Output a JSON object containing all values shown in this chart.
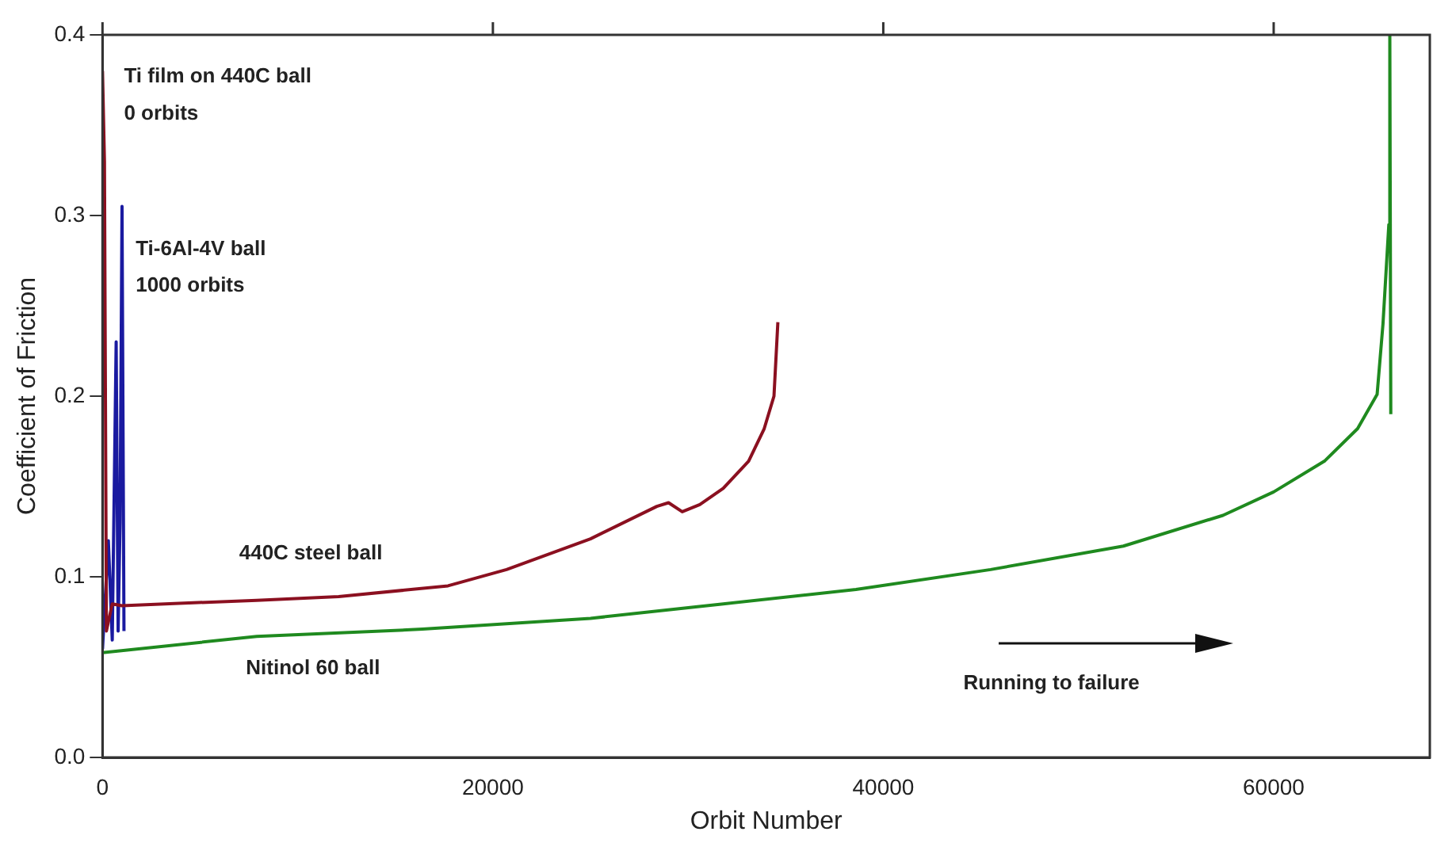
{
  "chart_data": {
    "type": "line",
    "xlabel": "Orbit Number",
    "ylabel": "Coefficient of Friction",
    "xlim": [
      0,
      68000
    ],
    "xticks": [
      0,
      20000,
      40000,
      60000
    ],
    "ylim": [
      0,
      0.4
    ],
    "yticks": [
      {
        "value": 0,
        "label": "0.0"
      },
      {
        "value": 0.1,
        "label": "0.1"
      },
      {
        "value": 0.2,
        "label": "0.2"
      },
      {
        "value": 0.3,
        "label": "0.3"
      },
      {
        "value": 0.4,
        "label": "0.4"
      }
    ],
    "grid": false,
    "legend": false,
    "marker": "none",
    "line_style": "solid",
    "series": [
      {
        "color": "#8b1020",
        "x": [
          0,
          100,
          200,
          500,
          1000,
          7900,
          12100,
          17700,
          20700,
          25000,
          28400,
          29000,
          29700,
          30600,
          31800,
          33100,
          33900,
          34400,
          34600
        ],
        "values": [
          0.38,
          0.33,
          0.07,
          0.085,
          0.084,
          0.087,
          0.089,
          0.095,
          0.104,
          0.121,
          0.139,
          0.141,
          0.136,
          0.14,
          0.149,
          0.164,
          0.182,
          0.2,
          0.241
        ]
      },
      {
        "color": "#1a1aa0",
        "x": [
          0,
          300,
          500,
          700,
          800,
          900,
          1000,
          1100
        ],
        "values": [
          0.06,
          0.12,
          0.065,
          0.23,
          0.07,
          0.13,
          0.305,
          0.07
        ]
      },
      {
        "color": "#1f8a1f",
        "x": [
          0,
          7900,
          16400,
          20700,
          25000,
          31800,
          38600,
          45500,
          52300,
          57400,
          60000,
          62600,
          64300,
          65300,
          65600,
          65900,
          65950,
          66000
        ],
        "values": [
          0.058,
          0.067,
          0.071,
          0.074,
          0.077,
          0.085,
          0.093,
          0.104,
          0.117,
          0.134,
          0.147,
          0.164,
          0.182,
          0.201,
          0.24,
          0.295,
          0.4,
          0.19
        ]
      }
    ],
    "annotations": [
      "Ti film on 440C ball",
      "0 orbits",
      "Ti-6Al-4V ball",
      "1000 orbits",
      "440C steel ball",
      "Nitinol 60 ball",
      "Running to failure"
    ]
  }
}
